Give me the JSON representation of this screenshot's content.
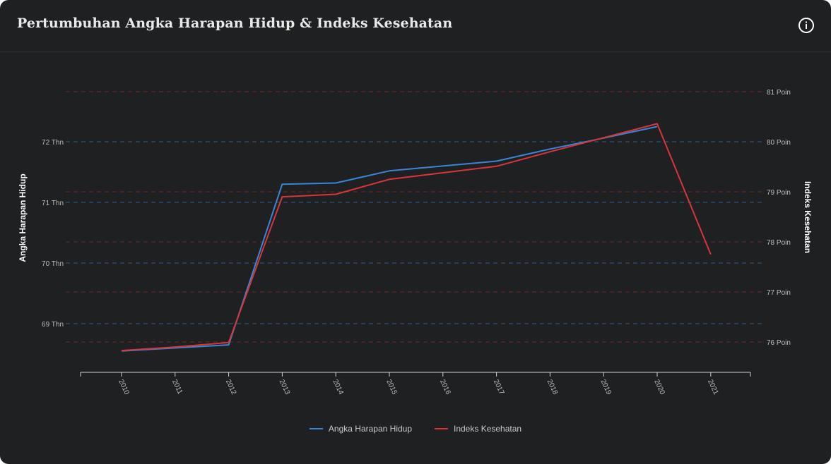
{
  "header": {
    "title": "Pertumbuhan Angka Harapan Hidup & Indeks Kesehatan",
    "info_icon": "info-circle-icon"
  },
  "colors": {
    "background": "#1f2021",
    "series_ahh": "#3a86d6",
    "series_ik": "#d8353a",
    "grid_left": "#2f5a86",
    "grid_right": "#6e2a2e",
    "axis_text": "#bdbdbd"
  },
  "chart_data": {
    "type": "line",
    "x": [
      "2010",
      "2011",
      "2012",
      "2013",
      "2014",
      "2015",
      "2016",
      "2017",
      "2018",
      "2019",
      "2020",
      "2021"
    ],
    "xlabel": "",
    "y_left": {
      "label": "Angka Harapan Hidup",
      "ticks": [
        69,
        70,
        71,
        72
      ],
      "tick_labels": [
        "69 Thn",
        "70 Thn",
        "71 Thn",
        "72 Thn"
      ]
    },
    "y_right": {
      "label": "Indeks Kesehatan",
      "ticks": [
        76,
        77,
        78,
        79,
        80,
        81
      ],
      "tick_labels": [
        "76 Poin",
        "77 Poin",
        "78 Poin",
        "79 Poin",
        "80 Poin",
        "81 Poin"
      ]
    },
    "grid": true,
    "legend_position": "bottom",
    "series": [
      {
        "name": "Angka Harapan Hidup",
        "axis": "left",
        "values": [
          68.55,
          68.6,
          68.65,
          71.3,
          71.32,
          71.52,
          71.6,
          71.68,
          71.88,
          72.06,
          72.25,
          null
        ]
      },
      {
        "name": "Indeks Kesehatan",
        "axis": "right",
        "values": [
          75.83,
          75.9,
          75.99,
          78.9,
          78.95,
          79.25,
          79.38,
          79.51,
          79.8,
          80.08,
          80.36,
          77.75
        ]
      }
    ]
  }
}
